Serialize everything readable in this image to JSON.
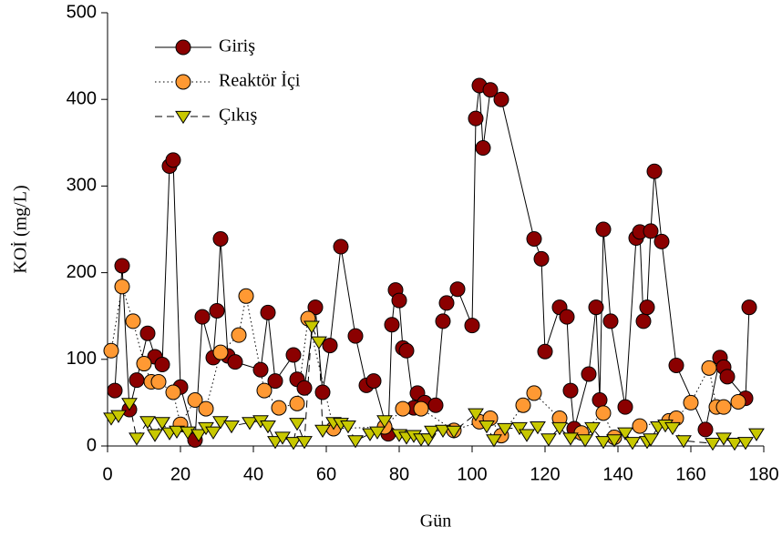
{
  "chart_data": {
    "type": "line",
    "x_label": "Gün",
    "y_label": "KOİ (mg/L)",
    "xlim": [
      0,
      180
    ],
    "xticks": [
      0,
      20,
      40,
      60,
      80,
      100,
      120,
      140,
      160,
      180
    ],
    "ylim": [
      0,
      500
    ],
    "yticks": [
      0,
      100,
      200,
      300,
      400,
      500
    ],
    "legend": "upper-left",
    "series": [
      {
        "name": "Giriş",
        "color": "#8b0000",
        "line_style": "solid",
        "marker": "circle",
        "x": [
          2,
          4,
          6,
          8,
          11,
          13,
          15,
          17,
          18,
          20,
          24,
          26,
          29,
          30,
          31,
          33,
          35,
          42,
          44,
          46,
          51,
          52,
          54,
          57,
          59,
          61,
          64,
          68,
          71,
          73,
          77,
          78,
          79,
          80,
          81,
          82,
          84,
          85,
          87,
          90,
          92,
          93,
          96,
          100,
          101,
          102,
          103,
          105,
          108,
          117,
          119,
          120,
          124,
          126,
          127,
          128,
          132,
          134,
          135,
          136,
          138,
          142,
          145,
          146,
          147,
          148,
          149,
          150,
          152,
          156,
          164,
          168,
          169,
          170,
          175,
          176
        ],
        "values": [
          64,
          208,
          42,
          76,
          130,
          103,
          94,
          323,
          330,
          68,
          7,
          149,
          102,
          156,
          239,
          104,
          97,
          88,
          154,
          75,
          105,
          77,
          67,
          160,
          62,
          116,
          230,
          127,
          70,
          75,
          14,
          140,
          180,
          168,
          113,
          110,
          44,
          61,
          50,
          47,
          144,
          165,
          181,
          139,
          378,
          416,
          344,
          411,
          400,
          239,
          216,
          109,
          160,
          149,
          64,
          20,
          83,
          160,
          53,
          250,
          144,
          45,
          240,
          247,
          144,
          160,
          248,
          317,
          236,
          93,
          19,
          102,
          91,
          80,
          55,
          160
        ]
      },
      {
        "name": "Reaktör İçi",
        "color": "#ff9933",
        "line_style": "dotted",
        "marker": "circle",
        "x": [
          1,
          4,
          7,
          10,
          12,
          14,
          18,
          20,
          24,
          27,
          31,
          36,
          38,
          43,
          47,
          52,
          55,
          62,
          76,
          81,
          86,
          95,
          102,
          105,
          108,
          114,
          117,
          124,
          130,
          136,
          139,
          146,
          154,
          156,
          160,
          165,
          167,
          169,
          173
        ],
        "values": [
          110,
          184,
          144,
          95,
          74,
          74,
          62,
          25,
          53,
          43,
          108,
          128,
          173,
          64,
          44,
          49,
          147,
          20,
          22,
          43,
          43,
          18,
          28,
          32,
          12,
          47,
          61,
          32,
          15,
          38,
          10,
          23,
          29,
          32,
          50,
          90,
          45,
          45,
          51
        ]
      },
      {
        "name": "Çıkış",
        "color": "#c8c800",
        "line_style": "dashed",
        "marker": "triangle-down",
        "x": [
          1,
          3,
          6,
          8,
          11,
          13,
          15,
          17,
          19,
          22,
          25,
          27,
          29,
          31,
          34,
          39,
          42,
          44,
          46,
          48,
          51,
          52,
          54,
          56,
          58,
          59,
          62,
          64,
          66,
          68,
          72,
          74,
          76,
          80,
          82,
          84,
          86,
          88,
          89,
          92,
          95,
          101,
          104,
          106,
          109,
          113,
          115,
          118,
          121,
          124,
          127,
          131,
          133,
          136,
          139,
          142,
          144,
          148,
          149,
          151,
          153,
          155,
          158,
          166,
          169,
          172,
          175,
          178
        ],
        "values": [
          32,
          35,
          49,
          9,
          28,
          13,
          27,
          15,
          17,
          16,
          13,
          21,
          16,
          28,
          23,
          27,
          29,
          23,
          5,
          10,
          4,
          26,
          5,
          138,
          120,
          18,
          27,
          26,
          23,
          6,
          14,
          16,
          29,
          13,
          10,
          12,
          8,
          8,
          17,
          18,
          17,
          37,
          23,
          7,
          20,
          21,
          13,
          22,
          8,
          21,
          9,
          7,
          21,
          5,
          7,
          15,
          4,
          5,
          8,
          22,
          24,
          21,
          6,
          3,
          9,
          3,
          4,
          14
        ]
      }
    ]
  }
}
